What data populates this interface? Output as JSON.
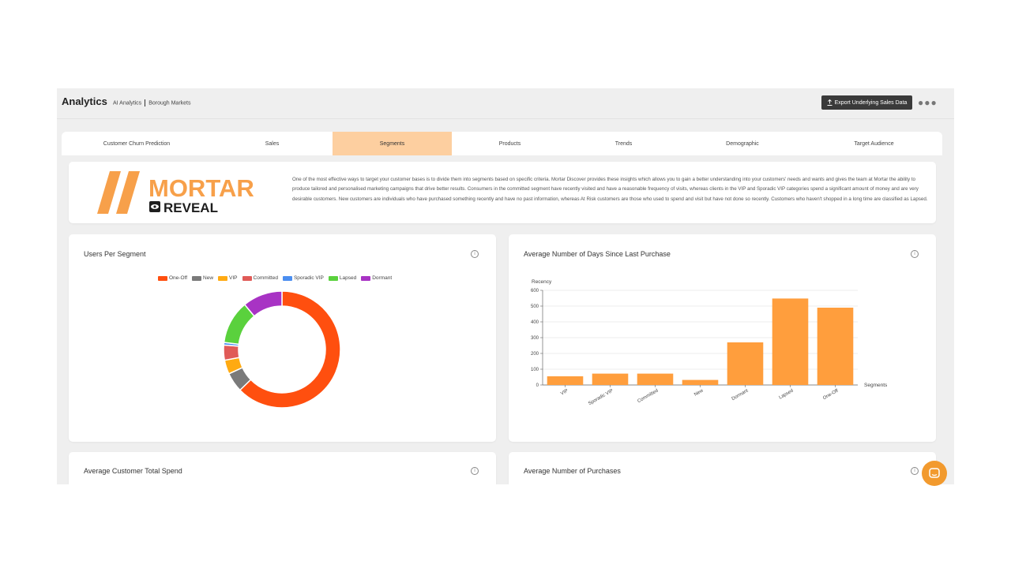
{
  "header": {
    "title": "Analytics",
    "breadcrumb_1": "AI Analytics",
    "breadcrumb_2": "Borough Markets",
    "export_label": "Export Underlying Sales Data",
    "more_icon": "more-icon"
  },
  "tabs": [
    {
      "label": "Customer Churn Prediction"
    },
    {
      "label": "Sales"
    },
    {
      "label": "Segments",
      "active": true
    },
    {
      "label": "Products"
    },
    {
      "label": "Trends"
    },
    {
      "label": "Demographic"
    },
    {
      "label": "Target Audience"
    }
  ],
  "intro": {
    "logo_text_1": "MORTAR",
    "logo_text_2": "REVEAL",
    "text": "One of the most effective ways to target your customer bases is to divide them into segments based on specific criteria. Mortar Discover provides these insights which allows you to gain a better understanding into your customers' needs and wants and gives the team at Mortar the ability to produce tailored and personalised marketing campaigns that drive better results. Consumers in the committed segment have recently visited and have a reasonable frequency of visits, whereas clients in the VIP and Sporadic VIP categories spend a significant amount of money and are very desirable customers. New customers are individuals who have purchased something recently and have no past information, whereas At Risk customers are those who used to spend and visit but have not done so recently. Customers who haven't shopped in a long time are classified as Lapsed."
  },
  "cards": {
    "users_per_segment": "Users Per Segment",
    "avg_days": "Average Number of Days Since Last Purchase",
    "avg_spend": "Average Customer Total Spend",
    "avg_purchases": "Average Number of Purchases"
  },
  "colors": {
    "accent": "#f7a04a",
    "tab_active": "#fdcfa0",
    "bar": "#ff9e3d"
  },
  "chart_data": [
    {
      "type": "pie",
      "title": "Users Per Segment",
      "legend_position": "top",
      "series": [
        {
          "name": "One-Off",
          "value": 61.5,
          "color": "#ff4f0f"
        },
        {
          "name": "New",
          "value": 5.3,
          "color": "#7a7a7a"
        },
        {
          "name": "VIP",
          "value": 3.8,
          "color": "#ffaa12"
        },
        {
          "name": "Committed",
          "value": 4.1,
          "color": "#e05a57"
        },
        {
          "name": "Sporadic VIP",
          "value": 0.7,
          "color": "#4b8ef0"
        },
        {
          "name": "Lapsed",
          "value": 11.8,
          "color": "#5ad13d"
        },
        {
          "name": "Dormant",
          "value": 10.8,
          "color": "#a833c4"
        }
      ]
    },
    {
      "type": "bar",
      "title": "Average Number of Days Since Last Purchase",
      "ylabel": "Recency",
      "xlabel": "Segments",
      "ylim": [
        0,
        600
      ],
      "yticks": [
        0,
        100,
        200,
        300,
        400,
        500,
        600
      ],
      "grid": true,
      "categories": [
        "VIP",
        "Sporadic VIP",
        "Committed",
        "New",
        "Dormant",
        "Lapsed",
        "One-Off"
      ],
      "values": [
        55,
        72,
        72,
        32,
        270,
        548,
        490
      ]
    }
  ]
}
